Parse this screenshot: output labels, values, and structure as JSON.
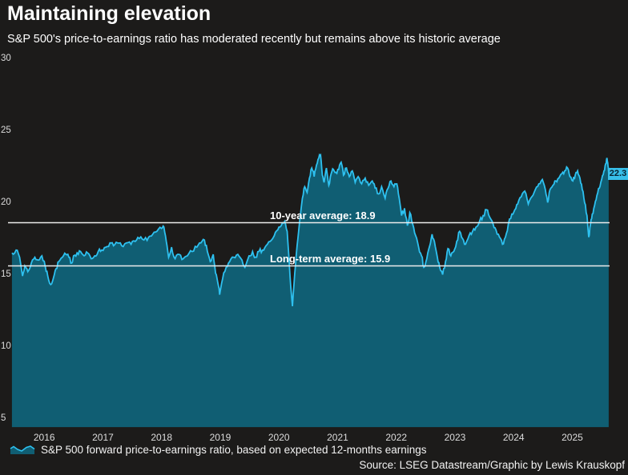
{
  "title": "Maintaining elevation",
  "subtitle": "S&P 500's price-to-earnings ratio has moderated recently but remains above its historic average",
  "source": "Source: LSEG Datastream/Graphic by Lewis Krauskopf",
  "legend": {
    "icon": "area-chart-icon",
    "label": "S&P 500 forward price-to-earnings ratio, based on expected 12-months earnings"
  },
  "colors": {
    "background": "#1c1b1a",
    "series_line": "#2ec1f0",
    "series_fill": "#105e73",
    "reference_line": "#ececec",
    "badge_bg": "#38bfe9",
    "badge_text": "#07222f",
    "axis_text": "#dcdcdc",
    "heading_text": "#ffffff"
  },
  "chart_data": {
    "type": "area",
    "title": "Maintaining elevation",
    "ylabel": "",
    "xlabel": "",
    "ylim": [
      4.7,
      30.7
    ],
    "yticks": [
      5,
      10,
      15,
      20,
      25,
      30
    ],
    "xticks": [
      2016,
      2017,
      2018,
      2019,
      2020,
      2021,
      2022,
      2023,
      2024,
      2025
    ],
    "grid": "off",
    "legend_position": "bottom",
    "reference_lines": [
      {
        "label": "10-year average: 18.9",
        "value": 18.9
      },
      {
        "label": "Long-term average: 15.9",
        "value": 15.9
      }
    ],
    "last_value_label": "22.3",
    "last_value": 22.3,
    "series": [
      {
        "name": "S&P 500 forward price-to-earnings ratio",
        "points": [
          [
            2015.45,
            16.8
          ],
          [
            2015.52,
            17.0
          ],
          [
            2015.58,
            16.5
          ],
          [
            2015.63,
            15.2
          ],
          [
            2015.67,
            15.9
          ],
          [
            2015.72,
            15.5
          ],
          [
            2015.78,
            16.1
          ],
          [
            2015.84,
            16.5
          ],
          [
            2015.9,
            16.3
          ],
          [
            2015.96,
            16.6
          ],
          [
            2016.02,
            15.8
          ],
          [
            2016.06,
            15.2
          ],
          [
            2016.11,
            14.6
          ],
          [
            2016.16,
            15.1
          ],
          [
            2016.2,
            15.7
          ],
          [
            2016.25,
            16.2
          ],
          [
            2016.31,
            16.5
          ],
          [
            2016.37,
            16.7
          ],
          [
            2016.42,
            16.5
          ],
          [
            2016.47,
            16.1
          ],
          [
            2016.5,
            16.6
          ],
          [
            2016.56,
            16.8
          ],
          [
            2016.62,
            16.9
          ],
          [
            2016.68,
            16.6
          ],
          [
            2016.74,
            16.8
          ],
          [
            2016.8,
            16.4
          ],
          [
            2016.86,
            16.6
          ],
          [
            2016.92,
            16.9
          ],
          [
            2016.98,
            17.0
          ],
          [
            2017.05,
            17.2
          ],
          [
            2017.12,
            17.5
          ],
          [
            2017.18,
            17.3
          ],
          [
            2017.25,
            17.5
          ],
          [
            2017.32,
            17.3
          ],
          [
            2017.4,
            17.5
          ],
          [
            2017.48,
            17.4
          ],
          [
            2017.55,
            17.6
          ],
          [
            2017.62,
            17.8
          ],
          [
            2017.7,
            17.7
          ],
          [
            2017.78,
            17.9
          ],
          [
            2017.85,
            18.1
          ],
          [
            2017.92,
            18.3
          ],
          [
            2018.0,
            18.5
          ],
          [
            2018.04,
            18.6
          ],
          [
            2018.08,
            17.6
          ],
          [
            2018.12,
            16.5
          ],
          [
            2018.17,
            17.2
          ],
          [
            2018.23,
            16.4
          ],
          [
            2018.3,
            16.7
          ],
          [
            2018.37,
            16.4
          ],
          [
            2018.44,
            16.6
          ],
          [
            2018.52,
            16.9
          ],
          [
            2018.6,
            17.2
          ],
          [
            2018.67,
            17.5
          ],
          [
            2018.73,
            17.7
          ],
          [
            2018.78,
            16.9
          ],
          [
            2018.83,
            16.2
          ],
          [
            2018.88,
            16.7
          ],
          [
            2018.92,
            15.4
          ],
          [
            2018.96,
            14.7
          ],
          [
            2018.99,
            13.9
          ],
          [
            2019.04,
            15.0
          ],
          [
            2019.1,
            15.8
          ],
          [
            2019.16,
            16.2
          ],
          [
            2019.23,
            16.5
          ],
          [
            2019.3,
            16.7
          ],
          [
            2019.37,
            16.3
          ],
          [
            2019.42,
            15.8
          ],
          [
            2019.49,
            16.6
          ],
          [
            2019.55,
            16.9
          ],
          [
            2019.6,
            16.5
          ],
          [
            2019.66,
            16.9
          ],
          [
            2019.72,
            17.0
          ],
          [
            2019.78,
            17.3
          ],
          [
            2019.85,
            17.6
          ],
          [
            2019.92,
            18.0
          ],
          [
            2019.98,
            18.4
          ],
          [
            2020.04,
            18.7
          ],
          [
            2020.1,
            19.0
          ],
          [
            2020.14,
            18.3
          ],
          [
            2020.17,
            16.5
          ],
          [
            2020.2,
            14.5
          ],
          [
            2020.23,
            13.1
          ],
          [
            2020.27,
            15.4
          ],
          [
            2020.31,
            17.3
          ],
          [
            2020.35,
            18.9
          ],
          [
            2020.4,
            20.6
          ],
          [
            2020.44,
            21.4
          ],
          [
            2020.48,
            21.0
          ],
          [
            2020.52,
            22.0
          ],
          [
            2020.56,
            22.7
          ],
          [
            2020.6,
            22.1
          ],
          [
            2020.64,
            22.9
          ],
          [
            2020.68,
            23.4
          ],
          [
            2020.71,
            23.6
          ],
          [
            2020.74,
            22.2
          ],
          [
            2020.77,
            21.7
          ],
          [
            2020.81,
            22.7
          ],
          [
            2020.85,
            21.5
          ],
          [
            2020.89,
            22.3
          ],
          [
            2020.93,
            22.6
          ],
          [
            2020.97,
            22.4
          ],
          [
            2021.02,
            22.6
          ],
          [
            2021.06,
            23.1
          ],
          [
            2021.1,
            22.2
          ],
          [
            2021.15,
            22.7
          ],
          [
            2021.2,
            22.1
          ],
          [
            2021.25,
            22.5
          ],
          [
            2021.3,
            21.7
          ],
          [
            2021.35,
            22.1
          ],
          [
            2021.41,
            21.6
          ],
          [
            2021.47,
            22.0
          ],
          [
            2021.53,
            21.5
          ],
          [
            2021.59,
            21.8
          ],
          [
            2021.64,
            21.3
          ],
          [
            2021.7,
            20.9
          ],
          [
            2021.75,
            21.4
          ],
          [
            2021.81,
            20.6
          ],
          [
            2021.86,
            21.3
          ],
          [
            2021.91,
            21.8
          ],
          [
            2021.96,
            21.4
          ],
          [
            2022.01,
            21.6
          ],
          [
            2022.05,
            20.6
          ],
          [
            2022.09,
            19.4
          ],
          [
            2022.14,
            19.9
          ],
          [
            2022.19,
            18.7
          ],
          [
            2022.23,
            19.6
          ],
          [
            2022.28,
            18.8
          ],
          [
            2022.33,
            18.0
          ],
          [
            2022.38,
            17.2
          ],
          [
            2022.43,
            16.6
          ],
          [
            2022.47,
            15.8
          ],
          [
            2022.52,
            16.4
          ],
          [
            2022.57,
            17.3
          ],
          [
            2022.61,
            18.1
          ],
          [
            2022.65,
            17.6
          ],
          [
            2022.7,
            16.5
          ],
          [
            2022.74,
            15.8
          ],
          [
            2022.79,
            15.3
          ],
          [
            2022.84,
            16.2
          ],
          [
            2022.88,
            17.1
          ],
          [
            2022.93,
            16.6
          ],
          [
            2022.98,
            16.9
          ],
          [
            2023.03,
            17.6
          ],
          [
            2023.08,
            18.3
          ],
          [
            2023.13,
            17.8
          ],
          [
            2023.18,
            17.4
          ],
          [
            2023.24,
            18.0
          ],
          [
            2023.3,
            18.3
          ],
          [
            2023.36,
            18.6
          ],
          [
            2023.42,
            19.0
          ],
          [
            2023.48,
            19.4
          ],
          [
            2023.54,
            19.8
          ],
          [
            2023.59,
            19.3
          ],
          [
            2023.65,
            18.8
          ],
          [
            2023.7,
            18.4
          ],
          [
            2023.76,
            17.9
          ],
          [
            2023.81,
            17.4
          ],
          [
            2023.86,
            17.9
          ],
          [
            2023.91,
            18.8
          ],
          [
            2023.97,
            19.5
          ],
          [
            2024.02,
            19.8
          ],
          [
            2024.07,
            20.2
          ],
          [
            2024.13,
            20.7
          ],
          [
            2024.19,
            21.1
          ],
          [
            2024.25,
            20.2
          ],
          [
            2024.31,
            20.7
          ],
          [
            2024.37,
            21.2
          ],
          [
            2024.43,
            21.6
          ],
          [
            2024.49,
            21.9
          ],
          [
            2024.54,
            21.2
          ],
          [
            2024.58,
            20.3
          ],
          [
            2024.62,
            21.2
          ],
          [
            2024.67,
            21.5
          ],
          [
            2024.72,
            21.8
          ],
          [
            2024.77,
            22.0
          ],
          [
            2024.82,
            22.3
          ],
          [
            2024.87,
            22.5
          ],
          [
            2024.92,
            22.7
          ],
          [
            2024.96,
            22.1
          ],
          [
            2025.01,
            21.8
          ],
          [
            2025.05,
            22.2
          ],
          [
            2025.09,
            22.5
          ],
          [
            2025.13,
            22.0
          ],
          [
            2025.17,
            21.2
          ],
          [
            2025.21,
            20.3
          ],
          [
            2025.25,
            19.4
          ],
          [
            2025.28,
            17.9
          ],
          [
            2025.31,
            18.8
          ],
          [
            2025.34,
            19.5
          ],
          [
            2025.38,
            20.1
          ],
          [
            2025.42,
            20.8
          ],
          [
            2025.46,
            21.3
          ],
          [
            2025.5,
            21.9
          ],
          [
            2025.54,
            22.5
          ],
          [
            2025.57,
            23.0
          ],
          [
            2025.59,
            23.4
          ],
          [
            2025.61,
            22.8
          ],
          [
            2025.62,
            22.3
          ]
        ]
      }
    ]
  }
}
